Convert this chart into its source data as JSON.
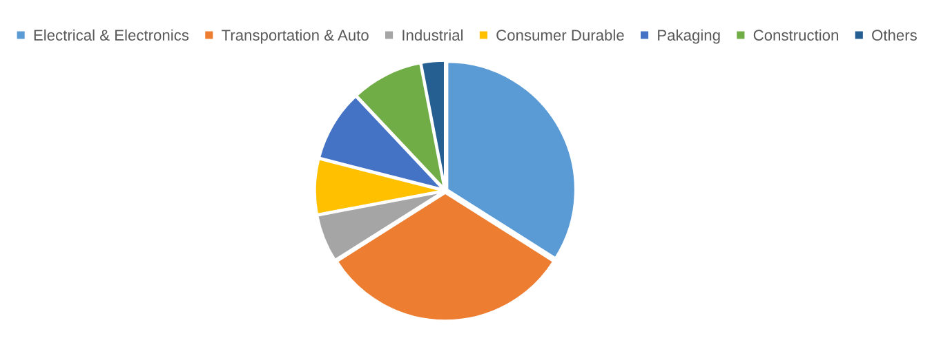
{
  "chart_data": {
    "type": "pie",
    "categories": [
      "Electrical & Electronics",
      "Transportation & Auto",
      "Industrial",
      "Consumer Durable",
      "Pakaging",
      "Construction",
      "Others"
    ],
    "values": [
      34,
      32,
      6,
      7,
      9,
      9,
      3
    ],
    "colors": [
      "#5b9bd5",
      "#ed7d31",
      "#a5a5a5",
      "#ffc000",
      "#4472c4",
      "#70ad47",
      "#255e91"
    ],
    "legend": "top"
  }
}
